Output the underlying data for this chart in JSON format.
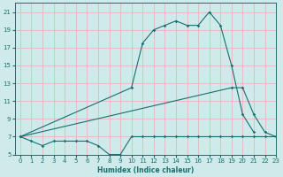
{
  "xlabel": "Humidex (Indice chaleur)",
  "bg_color": "#ceeaea",
  "grid_color": "#e8b8b8",
  "line_color": "#1a6e6e",
  "xlim": [
    -0.5,
    23
  ],
  "ylim": [
    5,
    22
  ],
  "xticks": [
    0,
    1,
    2,
    3,
    4,
    5,
    6,
    7,
    8,
    9,
    10,
    11,
    12,
    13,
    14,
    15,
    16,
    17,
    18,
    19,
    20,
    21,
    22,
    23
  ],
  "yticks": [
    5,
    7,
    9,
    11,
    13,
    15,
    17,
    19,
    21
  ],
  "line1_x": [
    0,
    1,
    2,
    3,
    4,
    5,
    6,
    7,
    8,
    9,
    10,
    11,
    12,
    13,
    14,
    15,
    16,
    17,
    18,
    19,
    20,
    21,
    22,
    23
  ],
  "line1_y": [
    7,
    6.5,
    6,
    6.5,
    6.5,
    6.5,
    6.5,
    6,
    5,
    5,
    7,
    7,
    7,
    7,
    7,
    7,
    7,
    7,
    7,
    7,
    7,
    7,
    7,
    7
  ],
  "line2_x": [
    0,
    10,
    11,
    12,
    13,
    14,
    15,
    16,
    17,
    18,
    19,
    20,
    21
  ],
  "line2_y": [
    7,
    12.5,
    17.5,
    19,
    19.5,
    20,
    19.5,
    19.5,
    21,
    19.5,
    15,
    9.5,
    7.5
  ],
  "line3_x": [
    0,
    19,
    20,
    21,
    22,
    23
  ],
  "line3_y": [
    7,
    12.5,
    12.5,
    9.5,
    7.5,
    7
  ]
}
